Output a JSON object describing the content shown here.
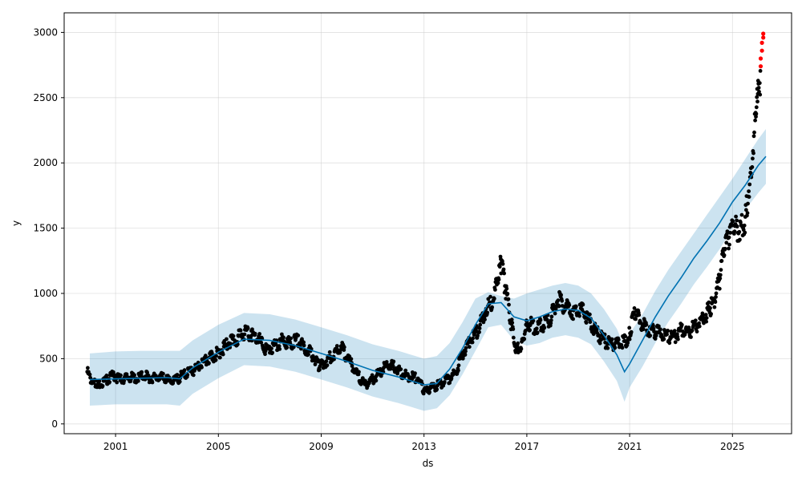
{
  "chart_data": {
    "type": "line",
    "title": "",
    "xlabel": "ds",
    "ylabel": "y",
    "xlim": [
      1999.0,
      2027.3
    ],
    "ylim": [
      -75,
      3150
    ],
    "grid": true,
    "x_ticks": [
      2001,
      2005,
      2009,
      2013,
      2017,
      2021,
      2025
    ],
    "x_tick_labels": [
      "2001",
      "2005",
      "2009",
      "2013",
      "2017",
      "2021",
      "2025"
    ],
    "y_ticks": [
      0,
      500,
      1000,
      1500,
      2000,
      2500,
      3000
    ],
    "y_tick_labels": [
      "0",
      "500",
      "1000",
      "1500",
      "2000",
      "2500",
      "3000"
    ],
    "colors": {
      "observed": "#000000",
      "forecast_line": "#0072B2",
      "uncertainty_fill": "#0072B2",
      "highlight": "#ff0000",
      "grid": "#cccccc"
    },
    "series": [
      {
        "kind": "forecast",
        "x": [
          2000.0,
          2001.0,
          2002.0,
          2003.0,
          2003.5,
          2004.0,
          2005.0,
          2006.0,
          2007.0,
          2008.0,
          2009.0,
          2010.0,
          2011.0,
          2012.0,
          2013.0,
          2013.5,
          2014.0,
          2014.5,
          2015.0,
          2015.5,
          2016.0,
          2016.5,
          2017.0,
          2017.5,
          2018.0,
          2018.5,
          2019.0,
          2019.5,
          2020.0,
          2020.5,
          2020.8,
          2021.0,
          2021.5,
          2022.0,
          2022.5,
          2023.0,
          2023.5,
          2024.0,
          2024.5,
          2025.0,
          2025.5,
          2026.0,
          2026.3
        ],
        "y": [
          340,
          345,
          350,
          355,
          345,
          430,
          550,
          650,
          640,
          600,
          540,
          480,
          410,
          360,
          300,
          310,
          420,
          580,
          760,
          920,
          930,
          820,
          790,
          820,
          860,
          880,
          870,
          810,
          680,
          530,
          400,
          460,
          640,
          820,
          980,
          1120,
          1270,
          1400,
          1540,
          1700,
          1830,
          1980,
          2050
        ]
      },
      {
        "kind": "uncertainty",
        "x": [
          2000.0,
          2001.0,
          2002.0,
          2003.0,
          2003.5,
          2004.0,
          2005.0,
          2006.0,
          2007.0,
          2008.0,
          2009.0,
          2010.0,
          2011.0,
          2012.0,
          2013.0,
          2013.5,
          2014.0,
          2014.5,
          2015.0,
          2015.5,
          2016.0,
          2016.5,
          2017.0,
          2017.5,
          2018.0,
          2018.5,
          2019.0,
          2019.5,
          2020.0,
          2020.5,
          2020.8,
          2021.0,
          2021.5,
          2022.0,
          2022.5,
          2023.0,
          2023.5,
          2024.0,
          2024.5,
          2025.0,
          2025.5,
          2026.0,
          2026.3
        ],
        "upper": [
          540,
          555,
          560,
          560,
          560,
          640,
          760,
          850,
          840,
          800,
          740,
          680,
          610,
          560,
          500,
          520,
          620,
          780,
          960,
          1010,
          980,
          960,
          1000,
          1030,
          1060,
          1080,
          1060,
          1000,
          880,
          730,
          590,
          690,
          840,
          1020,
          1180,
          1320,
          1460,
          1600,
          1740,
          1880,
          2030,
          2180,
          2260
        ],
        "lower": [
          140,
          150,
          150,
          150,
          140,
          230,
          350,
          450,
          440,
          400,
          340,
          280,
          210,
          160,
          100,
          120,
          220,
          380,
          560,
          740,
          760,
          640,
          600,
          620,
          660,
          680,
          660,
          610,
          480,
          330,
          170,
          280,
          440,
          620,
          780,
          920,
          1070,
          1200,
          1340,
          1500,
          1640,
          1770,
          1840
        ]
      },
      {
        "kind": "observed",
        "x": [
          1999.9,
          2000.1,
          2000.3,
          2000.6,
          2000.9,
          2001.2,
          2001.5,
          2001.8,
          2002.1,
          2002.4,
          2002.7,
          2003.0,
          2003.3,
          2003.6,
          2003.9,
          2004.2,
          2004.5,
          2004.8,
          2005.1,
          2005.4,
          2005.7,
          2006.0,
          2006.3,
          2006.6,
          2006.9,
          2007.2,
          2007.5,
          2007.8,
          2008.1,
          2008.4,
          2008.7,
          2008.9,
          2009.2,
          2009.5,
          2009.8,
          2010.1,
          2010.4,
          2010.7,
          2011.0,
          2011.3,
          2011.6,
          2011.9,
          2012.2,
          2012.5,
          2012.8,
          2013.0,
          2013.3,
          2013.6,
          2013.9,
          2014.2,
          2014.5,
          2014.8,
          2015.1,
          2015.4,
          2015.7,
          2015.9,
          2016.0,
          2016.2,
          2016.4,
          2016.6,
          2016.8,
          2017.0,
          2017.3,
          2017.6,
          2017.9,
          2018.2,
          2018.5,
          2018.8,
          2019.1,
          2019.4,
          2019.7,
          2020.0,
          2020.3,
          2020.6,
          2020.9,
          2021.0,
          2021.2,
          2021.5,
          2021.8,
          2022.1,
          2022.4,
          2022.7,
          2023.0,
          2023.3,
          2023.6,
          2023.9,
          2024.1,
          2024.3,
          2024.5,
          2024.7,
          2024.9,
          2025.1,
          2025.3,
          2025.5,
          2025.7,
          2025.9,
          2026.0,
          2026.1
        ],
        "y": [
          400,
          310,
          300,
          330,
          370,
          340,
          360,
          350,
          370,
          350,
          360,
          340,
          330,
          370,
          400,
          430,
          480,
          520,
          560,
          620,
          650,
          700,
          680,
          640,
          560,
          600,
          640,
          610,
          650,
          580,
          520,
          440,
          480,
          540,
          580,
          480,
          380,
          300,
          340,
          400,
          460,
          430,
          380,
          360,
          350,
          240,
          280,
          300,
          340,
          380,
          540,
          640,
          720,
          880,
          960,
          1120,
          1230,
          1000,
          760,
          560,
          620,
          780,
          740,
          760,
          800,
          960,
          900,
          860,
          880,
          800,
          700,
          640,
          600,
          620,
          640,
          700,
          860,
          760,
          720,
          700,
          680,
          660,
          720,
          700,
          760,
          820,
          880,
          940,
          1100,
          1350,
          1450,
          1500,
          1480,
          1560,
          1920,
          2350,
          2700,
          2640
        ]
      },
      {
        "kind": "highlight",
        "x": [
          2026.1,
          2026.1,
          2026.15,
          2026.15,
          2026.2,
          2026.2
        ],
        "y": [
          2740,
          2800,
          2860,
          2920,
          2960,
          2990
        ]
      }
    ]
  }
}
